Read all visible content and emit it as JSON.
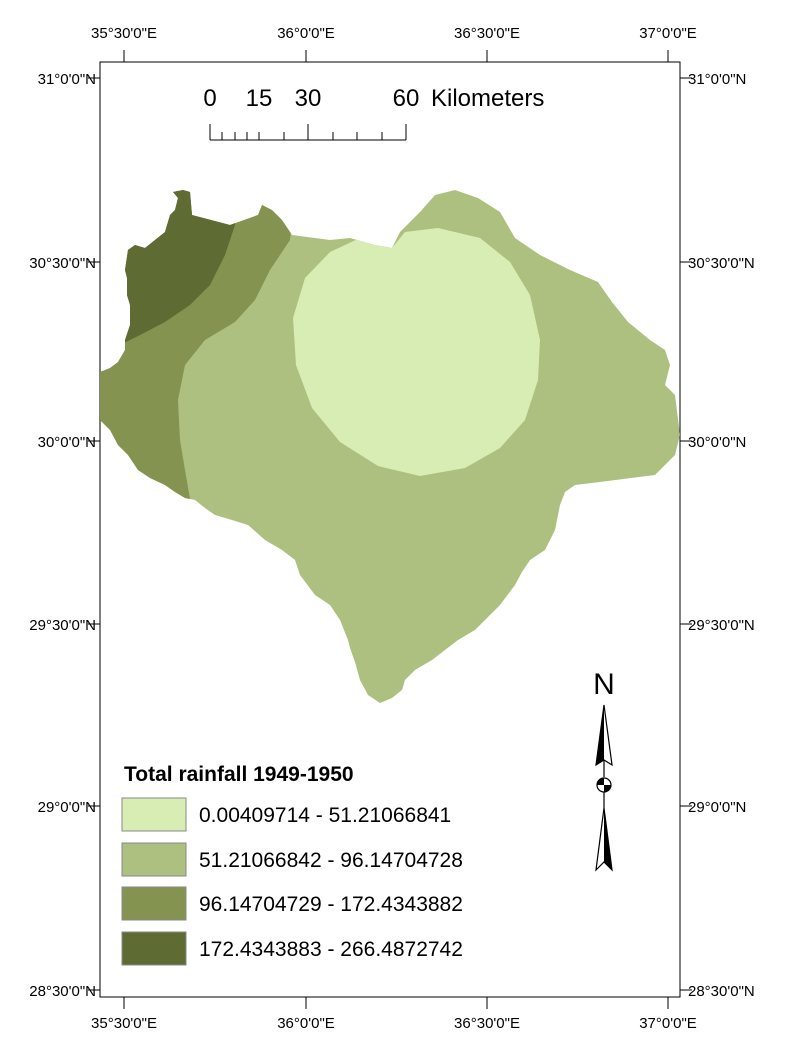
{
  "map": {
    "frame": {
      "top_labels": [
        "35°30'0\"E",
        "36°0'0\"E",
        "36°30'0\"E",
        "37°0'0\"E"
      ],
      "bottom_labels": [
        "35°30'0\"E",
        "36°0'0\"E",
        "36°30'0\"E",
        "37°0'0\"E"
      ],
      "left_labels": [
        "31°0'0\"N",
        "30°30'0\"N",
        "30°0'0\"N",
        "29°30'0\"N",
        "29°0'0\"N",
        "28°30'0\"N"
      ],
      "right_labels": [
        "31°0'0\"N",
        "30°30'0\"N",
        "30°0'0\"N",
        "29°30'0\"N",
        "29°0'0\"N",
        "28°30'0\"N"
      ]
    },
    "scale_bar": {
      "ticks": [
        "0",
        "15",
        "30",
        "60"
      ],
      "unit": "Kilometers"
    },
    "north_arrow": {
      "label": "N"
    },
    "legend": {
      "title": "Total rainfall 1949-1950",
      "classes": [
        {
          "label": "0.00409714 - 51.21066841",
          "color": "#d7edb3"
        },
        {
          "label": "51.21066842 - 96.14704728",
          "color": "#adc080"
        },
        {
          "label": "96.14704729 - 172.4343882",
          "color": "#849350"
        },
        {
          "label": "172.4343883 - 266.4872742",
          "color": "#5e6b32"
        }
      ]
    }
  }
}
